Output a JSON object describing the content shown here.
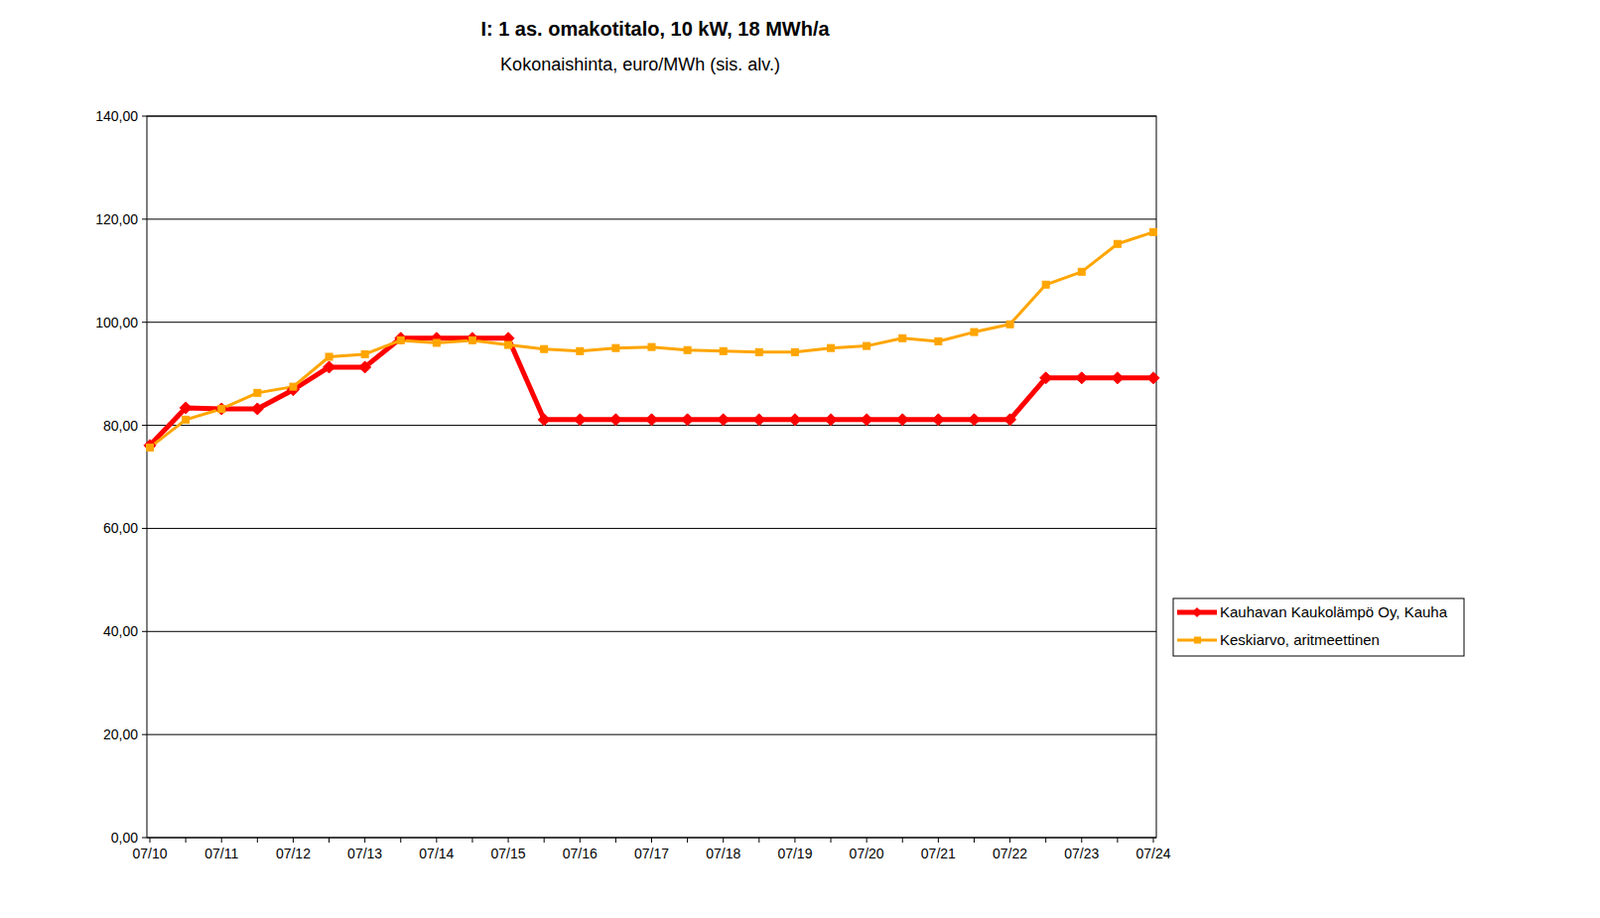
{
  "chart_data": {
    "type": "line",
    "title": "I: 1 as. omakotitalo, 10 kW, 18 MWh/a",
    "subtitle": "Kokonaishinta, euro/MWh (sis. alv.)",
    "categories": [
      "07/10",
      null,
      "07/11",
      null,
      "07/12",
      null,
      "07/13",
      null,
      "07/14",
      null,
      "07/15",
      null,
      "07/16",
      null,
      "07/17",
      null,
      "07/18",
      null,
      "07/19",
      null,
      "07/20",
      null,
      "07/21",
      null,
      "07/22",
      null,
      "07/23",
      null,
      "07/24"
    ],
    "series": [
      {
        "name": "Kauhavan Kaukolämpö Oy, Kauha",
        "color": "#ff0000",
        "marker": "diamond",
        "line_style": "solid",
        "values": [
          76.1,
          83.4,
          83.2,
          83.2,
          86.9,
          91.3,
          91.3,
          96.9,
          96.9,
          96.9,
          96.9,
          81.1,
          81.1,
          81.1,
          81.1,
          81.1,
          81.1,
          81.1,
          81.1,
          81.1,
          81.1,
          81.1,
          81.1,
          81.1,
          81.1,
          89.2,
          89.2,
          89.2,
          89.2
        ]
      },
      {
        "name": "Keskiarvo, aritmeettinen",
        "color": "#ffa500",
        "marker": "square",
        "line_style": "solid",
        "values": [
          75.7,
          81.1,
          83.2,
          86.3,
          87.5,
          93.3,
          93.8,
          96.5,
          96.0,
          96.5,
          95.6,
          94.8,
          94.4,
          95.0,
          95.2,
          94.6,
          94.4,
          94.2,
          94.2,
          95.0,
          95.4,
          96.9,
          96.3,
          98.1,
          99.6,
          107.3,
          109.8,
          115.2,
          117.5
        ]
      }
    ],
    "ylim": [
      0,
      140
    ],
    "yticks": [
      {
        "value": 0,
        "label": "0,00"
      },
      {
        "value": 20,
        "label": "20,00"
      },
      {
        "value": 40,
        "label": "40,00"
      },
      {
        "value": 60,
        "label": "60,00"
      },
      {
        "value": 80,
        "label": "80,00"
      },
      {
        "value": 100,
        "label": "100,00"
      },
      {
        "value": 120,
        "label": "120,00"
      },
      {
        "value": 140,
        "label": "140,00"
      }
    ],
    "grid": true,
    "legend": "right"
  }
}
